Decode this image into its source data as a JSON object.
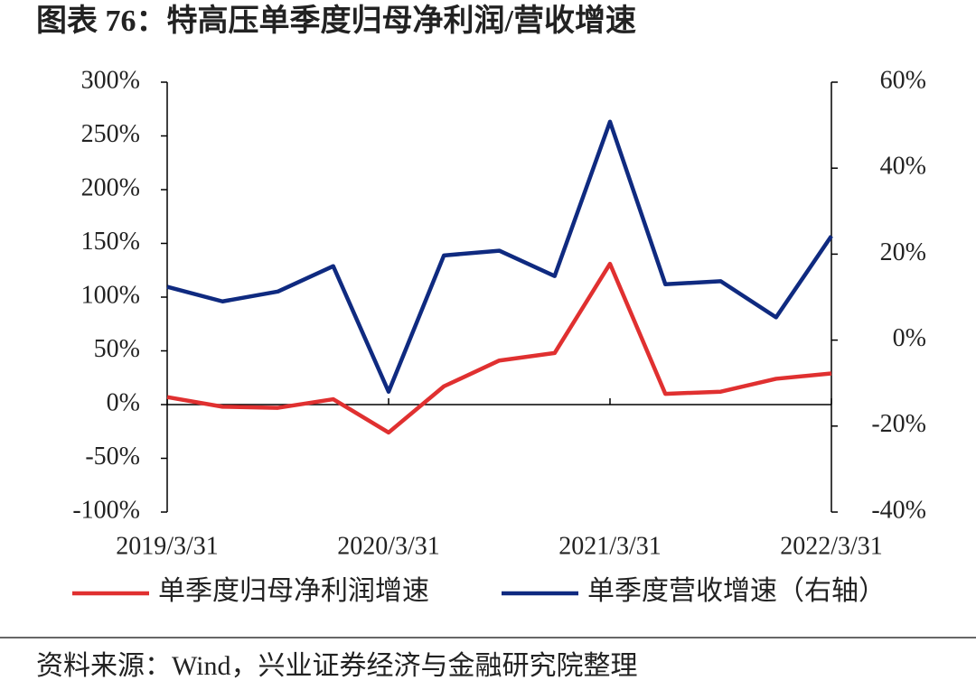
{
  "chart_data": {
    "type": "line",
    "title": "图表 76：特高压单季度归母净利润/营收增速",
    "categories": [
      "2019/3/31",
      null,
      null,
      null,
      "2020/3/31",
      null,
      null,
      null,
      "2021/3/31",
      null,
      null,
      null,
      "2022/3/31"
    ],
    "series": [
      {
        "name": "单季度归母净利润增速",
        "color": "#e03030",
        "values": [
          7,
          -2,
          -3,
          5,
          -26,
          17,
          41,
          48,
          131,
          10,
          12,
          24,
          29
        ]
      },
      {
        "name": "单季度营收增速（右轴）",
        "color": "#0f2a80",
        "axis": "y2",
        "values": [
          12.4,
          9,
          11.3,
          17.2,
          -12,
          19.7,
          20.8,
          14.9,
          50.8,
          13,
          13.7,
          5.3,
          24.2
        ]
      }
    ],
    "ylim": [
      -100,
      300
    ],
    "yticks": [
      {
        "value": -100,
        "label": "-100%"
      },
      {
        "value": -50,
        "label": "-50%"
      },
      {
        "value": 0,
        "label": "0%"
      },
      {
        "value": 50,
        "label": "50%"
      },
      {
        "value": 100,
        "label": "100%"
      },
      {
        "value": 150,
        "label": "150%"
      },
      {
        "value": 200,
        "label": "200%"
      },
      {
        "value": 250,
        "label": "250%"
      },
      {
        "value": 300,
        "label": "300%"
      }
    ],
    "y2lim": [
      -40,
      60
    ],
    "y2ticks": [
      {
        "value": -40,
        "label": "-40%"
      },
      {
        "value": -20,
        "label": "-20%"
      },
      {
        "value": 0,
        "label": "0%"
      },
      {
        "value": 20,
        "label": "20%"
      },
      {
        "value": 40,
        "label": "40%"
      },
      {
        "value": 60,
        "label": "60%"
      }
    ],
    "grid": false,
    "legend": "bottom",
    "source": "资料来源：Wind，兴业证券经济与金融研究院整理"
  }
}
